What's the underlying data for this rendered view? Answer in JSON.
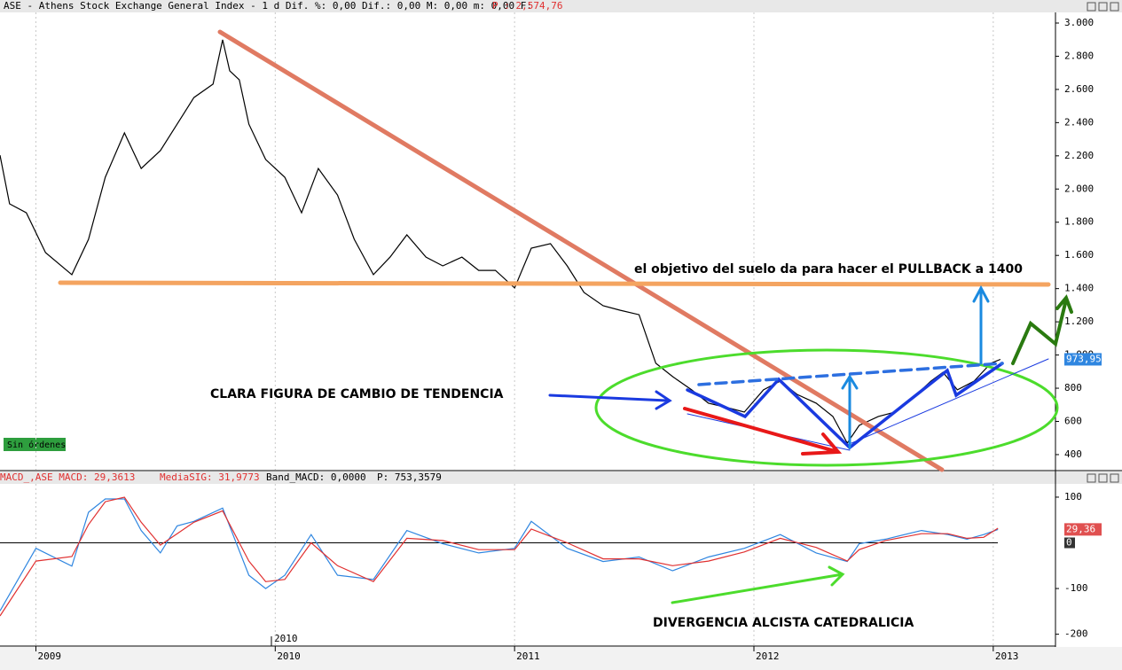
{
  "chart_data": [
    {
      "type": "line",
      "header": "ASE - Athens Stock Exchange General Index -  1 d Dif. %: 0,00 Dif.: 0,00 M: 0,00 m: 0,00 F:",
      "price_label": "P : 2,574,76",
      "status": "Sin órdenes",
      "annotations": [
        "CLARA FIGURA DE CAMBIO DE TENDENCIA",
        "el objetivo del suelo da para hacer el PULLBACK a 1400"
      ],
      "x_marker": "2010",
      "xlim": [
        2008.85,
        2013.26
      ],
      "xticks": [
        2009,
        2010,
        2011,
        2012,
        2013
      ],
      "ylim": [
        309,
        3064
      ],
      "yticks": [
        400,
        600,
        800,
        {
          "value": 1000,
          "label": "1.000"
        },
        {
          "value": 1200,
          "label": "1.200"
        },
        {
          "value": 1400,
          "label": "1.400"
        },
        {
          "value": 1600,
          "label": "1.600"
        },
        {
          "value": 1800,
          "label": "1.800"
        },
        {
          "value": 2000,
          "label": "2.000"
        },
        {
          "value": 2200,
          "label": "2.200"
        },
        {
          "value": 2400,
          "label": "2.400"
        },
        {
          "value": 2600,
          "label": "2.600"
        },
        {
          "value": 2800,
          "label": "2.800"
        },
        {
          "value": 3000,
          "label": "3.000"
        }
      ],
      "x": [
        2008.85,
        2008.89,
        2008.96,
        2009.04,
        2009.15,
        2009.22,
        2009.29,
        2009.37,
        2009.44,
        2009.52,
        2009.59,
        2009.66,
        2009.74,
        2009.78,
        2009.81,
        2009.85,
        2009.89,
        2009.96,
        2010.04,
        2010.11,
        2010.18,
        2010.26,
        2010.33,
        2010.41,
        2010.48,
        2010.55,
        2010.63,
        2010.7,
        2010.78,
        2010.85,
        2010.92,
        2011.0,
        2011.07,
        2011.15,
        2011.22,
        2011.29,
        2011.37,
        2011.44,
        2011.52,
        2011.59,
        2011.66,
        2011.74,
        2011.81,
        2011.89,
        2011.96,
        2012.04,
        2012.11,
        2012.18,
        2012.26,
        2012.33,
        2012.39,
        2012.44,
        2012.52,
        2012.59,
        2012.66,
        2012.74,
        2012.79,
        2012.85,
        2012.92,
        2012.99,
        2013.03
      ],
      "series": [
        {
          "color": "#000000",
          "values": [
            2204,
            1911,
            1857,
            1617,
            1484,
            1697,
            2071,
            2338,
            2124,
            2231,
            2391,
            2551,
            2632,
            2899,
            2712,
            2658,
            2391,
            2178,
            2071,
            1857,
            2124,
            1964,
            1697,
            1484,
            1590,
            1724,
            1590,
            1537,
            1590,
            1510,
            1510,
            1404,
            1644,
            1671,
            1537,
            1377,
            1297,
            1270,
            1243,
            950,
            870,
            790,
            710,
            683,
            656,
            790,
            843,
            763,
            710,
            630,
            469,
            576,
            630,
            656,
            737,
            843,
            896,
            790,
            843,
            950,
            973.95
          ]
        }
      ],
      "last_label": "973,95"
    },
    {
      "type": "line",
      "header": [
        "MACD_,ASE MACD: 29,3613",
        "MediaSIG: 31,9773",
        "Band_MACD: 0,0000",
        "P: 753,3579"
      ],
      "annotations": [
        "DIVERGENCIA ALCISTA CATEDRALICIA"
      ],
      "xlim": [
        2008.85,
        2013.26
      ],
      "ylim": [
        -224,
        129
      ],
      "yticks": [
        100,
        -100,
        -200
      ],
      "zero_line": 0,
      "x": [
        2008.85,
        2009.0,
        2009.15,
        2009.22,
        2009.29,
        2009.37,
        2009.44,
        2009.52,
        2009.59,
        2009.66,
        2009.78,
        2009.89,
        2009.96,
        2010.04,
        2010.15,
        2010.26,
        2010.41,
        2010.55,
        2010.7,
        2010.85,
        2011.0,
        2011.07,
        2011.22,
        2011.37,
        2011.52,
        2011.66,
        2011.81,
        2011.96,
        2012.11,
        2012.26,
        2012.39,
        2012.44,
        2012.55,
        2012.7,
        2012.81,
        2012.89,
        2012.96,
        2013.02
      ],
      "series": [
        {
          "color": "#2f86e0",
          "values": [
            -149,
            -12,
            -51,
            67,
            96,
            96,
            27,
            -22,
            37,
            47,
            76,
            -71,
            -100,
            -71,
            18,
            -71,
            -80,
            27,
            -2,
            -22,
            -12,
            47,
            -12,
            -41,
            -31,
            -61,
            -31,
            -12,
            18,
            -22,
            -41,
            -2,
            8,
            27,
            18,
            8,
            18,
            29.36
          ]
        },
        {
          "color": "#e03030",
          "values": [
            -160,
            -40,
            -30,
            40,
            90,
            100,
            45,
            -5,
            20,
            45,
            70,
            -40,
            -85,
            -80,
            0,
            -50,
            -85,
            10,
            5,
            -15,
            -15,
            30,
            0,
            -35,
            -35,
            -50,
            -40,
            -20,
            10,
            -10,
            -40,
            -15,
            5,
            20,
            20,
            10,
            12,
            31.98
          ]
        }
      ],
      "last_label": "29,36"
    }
  ]
}
